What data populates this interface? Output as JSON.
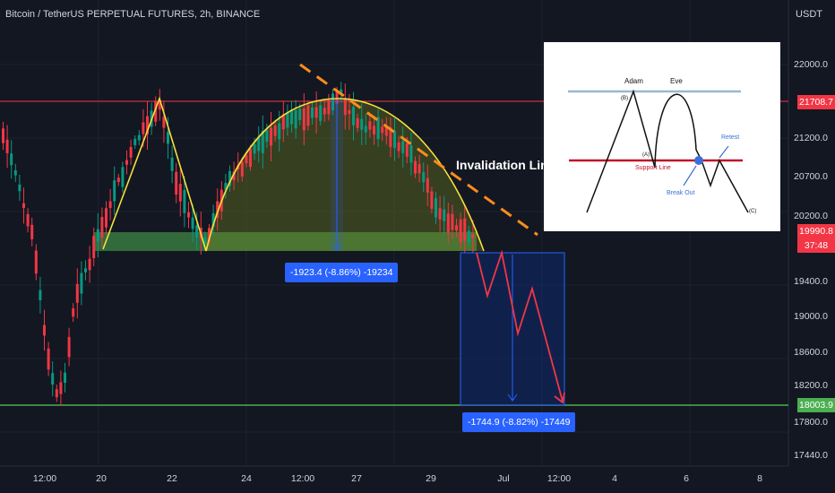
{
  "chart_data": {
    "type": "candlestick",
    "title": "Bitcoin / TetherUS PERPETUAL FUTURES, 2h, BINANCE",
    "currency": "USDT",
    "y_ticks": [
      "22000.0",
      "21200.0",
      "20700.0",
      "20200.0",
      "19400.0",
      "19000.0",
      "18600.0",
      "18200.0",
      "17800.0",
      "17440.0"
    ],
    "x_ticks": [
      "12:00",
      "20",
      "22",
      "24",
      "12:00",
      "27",
      "29",
      "Jul",
      "12:00",
      "4",
      "6",
      "8"
    ],
    "price_levels": {
      "resistance": {
        "value": "21708.7",
        "color": "#f23645"
      },
      "support_target": {
        "value": "18003.9",
        "color": "#089981"
      },
      "current": {
        "value": "19990.8",
        "countdown": "37:48",
        "color": "#f23645"
      }
    },
    "annotations": {
      "invalidation_label": "Invalidation Line",
      "measure_top": "-1923.4 (-8.86%) -19234",
      "measure_bottom": "-1744.9 (-8.82%) -17449"
    },
    "inset": {
      "labels": {
        "adam": "Adam",
        "eve": "Eve",
        "point_b": "(B)",
        "point_a": "(A)",
        "support": "Support Line",
        "retest": "Retest",
        "breakout": "Break Out",
        "point_c": "(C)"
      }
    },
    "colors": {
      "bull": "#089981",
      "bear": "#f23645",
      "pattern_line": "#f7e13a",
      "invalidation": "#ff8c1a",
      "neckline_zone": "#4caf50",
      "projection": "#f23645",
      "measure": "#2962ff"
    }
  }
}
